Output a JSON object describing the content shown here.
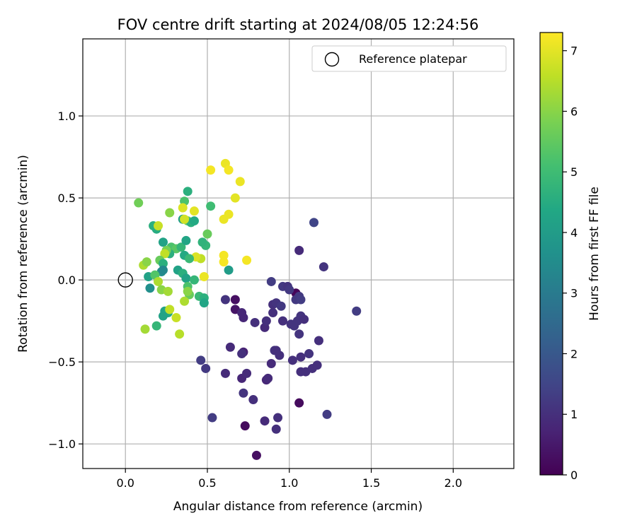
{
  "chart_data": {
    "type": "scatter",
    "title": "FOV centre drift starting at 2024/08/05 12:24:56",
    "xlabel": "Angular distance from reference (arcmin)",
    "ylabel": "Rotation from reference (arcmin)",
    "xlim": [
      -0.26,
      2.37
    ],
    "ylim": [
      -1.15,
      1.47
    ],
    "xticks": [
      0.0,
      0.5,
      1.0,
      1.5,
      2.0
    ],
    "xtick_labels": [
      "0.0",
      "0.5",
      "1.0",
      "1.5",
      "2.0"
    ],
    "yticks": [
      -1.0,
      -0.5,
      0.0,
      0.5,
      1.0
    ],
    "ytick_labels": [
      "−1.0",
      "−0.5",
      "0.0",
      "0.5",
      "1.0"
    ],
    "grid": true,
    "legend": {
      "label": "Reference platepar",
      "position": "top-right"
    },
    "reference_point": {
      "x": 0.0,
      "y": 0.0
    },
    "colorbar": {
      "label": "Hours from first FF file",
      "range": [
        0,
        7.3
      ],
      "ticks": [
        0,
        1,
        2,
        3,
        4,
        5,
        6,
        7
      ],
      "colormap": "viridis"
    },
    "points": [
      [
        0.8,
        -1.07,
        0.3
      ],
      [
        0.73,
        -0.89,
        0.2
      ],
      [
        1.06,
        -0.75,
        0.2
      ],
      [
        1.04,
        -0.08,
        0.1
      ],
      [
        0.67,
        -0.12,
        0.3
      ],
      [
        0.67,
        -0.18,
        0.4
      ],
      [
        0.71,
        -0.6,
        0.8
      ],
      [
        0.72,
        -0.44,
        0.7
      ],
      [
        0.85,
        -0.86,
        0.9
      ],
      [
        0.92,
        -0.91,
        1.0
      ],
      [
        0.93,
        -0.84,
        1.0
      ],
      [
        0.53,
        -0.84,
        1.3
      ],
      [
        0.72,
        -0.69,
        1.1
      ],
      [
        0.78,
        -0.73,
        1.0
      ],
      [
        0.74,
        -0.57,
        0.9
      ],
      [
        0.61,
        -0.57,
        0.9
      ],
      [
        0.49,
        -0.54,
        1.2
      ],
      [
        0.46,
        -0.49,
        1.3
      ],
      [
        0.64,
        -0.41,
        0.9
      ],
      [
        0.71,
        -0.45,
        1.0
      ],
      [
        0.72,
        -0.23,
        0.8
      ],
      [
        0.71,
        -0.2,
        0.8
      ],
      [
        0.61,
        -0.12,
        1.1
      ],
      [
        0.79,
        -0.26,
        1.0
      ],
      [
        0.85,
        -0.29,
        0.9
      ],
      [
        0.86,
        -0.25,
        1.0
      ],
      [
        0.9,
        -0.2,
        1.0
      ],
      [
        0.9,
        -0.15,
        1.0
      ],
      [
        0.91,
        -0.43,
        1.1
      ],
      [
        0.92,
        -0.43,
        1.0
      ],
      [
        0.89,
        -0.51,
        0.9
      ],
      [
        0.86,
        -0.61,
        0.8
      ],
      [
        0.87,
        -0.6,
        0.9
      ],
      [
        0.89,
        -0.01,
        1.3
      ],
      [
        0.92,
        -0.14,
        1.1
      ],
      [
        0.94,
        -0.46,
        1.0
      ],
      [
        0.96,
        -0.04,
        1.2
      ],
      [
        0.99,
        -0.04,
        1.1
      ],
      [
        1.0,
        -0.06,
        1.2
      ],
      [
        0.95,
        -0.16,
        1.2
      ],
      [
        0.96,
        -0.25,
        1.0
      ],
      [
        1.01,
        -0.27,
        1.1
      ],
      [
        1.02,
        -0.49,
        1.0
      ],
      [
        1.03,
        -0.28,
        1.1
      ],
      [
        1.05,
        -0.25,
        1.1
      ],
      [
        1.04,
        -0.12,
        1.2
      ],
      [
        1.06,
        -0.1,
        1.2
      ],
      [
        1.07,
        -0.12,
        1.3
      ],
      [
        1.07,
        -0.22,
        1.1
      ],
      [
        1.09,
        -0.24,
        1.0
      ],
      [
        1.06,
        -0.33,
        1.1
      ],
      [
        1.07,
        -0.47,
        1.0
      ],
      [
        1.07,
        -0.56,
        1.0
      ],
      [
        1.1,
        -0.56,
        1.0
      ],
      [
        1.12,
        -0.45,
        1.1
      ],
      [
        1.14,
        -0.54,
        1.0
      ],
      [
        1.17,
        -0.52,
        1.0
      ],
      [
        1.18,
        -0.37,
        1.0
      ],
      [
        1.06,
        0.18,
        0.9
      ],
      [
        1.21,
        0.08,
        1.1
      ],
      [
        1.15,
        0.35,
        1.5
      ],
      [
        1.23,
        -0.82,
        1.3
      ],
      [
        1.41,
        -0.19,
        1.3
      ],
      [
        0.08,
        0.47,
        5.7
      ],
      [
        0.17,
        0.33,
        4.6
      ],
      [
        0.19,
        0.31,
        4.5
      ],
      [
        0.2,
        0.33,
        6.7
      ],
      [
        0.27,
        0.41,
        6.0
      ],
      [
        0.36,
        0.48,
        5.2
      ],
      [
        0.38,
        0.54,
        4.6
      ],
      [
        0.52,
        0.45,
        5.0
      ],
      [
        0.38,
        0.36,
        5.5
      ],
      [
        0.35,
        0.37,
        4.1
      ],
      [
        0.4,
        0.35,
        4.6
      ],
      [
        0.42,
        0.36,
        4.4
      ],
      [
        0.23,
        0.23,
        4.2
      ],
      [
        0.28,
        0.2,
        5.2
      ],
      [
        0.31,
        0.19,
        5.4
      ],
      [
        0.27,
        0.16,
        4.6
      ],
      [
        0.25,
        0.18,
        5.8
      ],
      [
        0.24,
        0.16,
        6.6
      ],
      [
        0.34,
        0.2,
        4.8
      ],
      [
        0.36,
        0.15,
        4.4
      ],
      [
        0.37,
        0.24,
        4.3
      ],
      [
        0.21,
        0.12,
        5.6
      ],
      [
        0.23,
        0.1,
        4.6
      ],
      [
        0.22,
        0.05,
        3.6
      ],
      [
        0.14,
        0.02,
        4.2
      ],
      [
        0.11,
        0.09,
        6.4
      ],
      [
        0.13,
        0.11,
        6.0
      ],
      [
        0.18,
        0.03,
        5.3
      ],
      [
        0.23,
        0.06,
        3.4
      ],
      [
        0.32,
        0.06,
        4.2
      ],
      [
        0.35,
        0.04,
        4.6
      ],
      [
        0.37,
        0.01,
        4.2
      ],
      [
        0.42,
        0.0,
        4.8
      ],
      [
        0.2,
        -0.01,
        6.4
      ],
      [
        0.22,
        -0.06,
        6.0
      ],
      [
        0.15,
        -0.05,
        3.6
      ],
      [
        0.26,
        -0.07,
        6.3
      ],
      [
        0.38,
        -0.04,
        5.2
      ],
      [
        0.39,
        -0.09,
        5.6
      ],
      [
        0.36,
        -0.13,
        6.4
      ],
      [
        0.45,
        -0.1,
        4.9
      ],
      [
        0.48,
        -0.11,
        4.6
      ],
      [
        0.48,
        -0.14,
        4.3
      ],
      [
        0.24,
        -0.19,
        4.2
      ],
      [
        0.26,
        -0.2,
        4.4
      ],
      [
        0.23,
        -0.22,
        4.2
      ],
      [
        0.27,
        -0.18,
        6.6
      ],
      [
        0.31,
        -0.23,
        6.7
      ],
      [
        0.19,
        -0.28,
        4.8
      ],
      [
        0.12,
        -0.3,
        6.3
      ],
      [
        0.33,
        -0.33,
        6.5
      ],
      [
        0.38,
        -0.07,
        6.0
      ],
      [
        0.49,
        0.21,
        4.8
      ],
      [
        0.47,
        0.23,
        4.7
      ],
      [
        0.5,
        0.28,
        5.6
      ],
      [
        0.46,
        0.13,
        6.6
      ],
      [
        0.43,
        0.14,
        6.9
      ],
      [
        0.39,
        0.13,
        4.9
      ],
      [
        0.63,
        0.06,
        4.0
      ],
      [
        0.48,
        0.02,
        7.1
      ],
      [
        0.36,
        0.37,
        6.8
      ],
      [
        0.42,
        0.42,
        7.0
      ],
      [
        0.35,
        0.44,
        6.9
      ],
      [
        0.6,
        0.37,
        7.1
      ],
      [
        0.63,
        0.4,
        7.1
      ],
      [
        0.52,
        0.67,
        7.2
      ],
      [
        0.61,
        0.71,
        7.1
      ],
      [
        0.63,
        0.67,
        7.2
      ],
      [
        0.7,
        0.6,
        7.1
      ],
      [
        0.67,
        0.5,
        7.0
      ],
      [
        0.6,
        0.15,
        7.2
      ],
      [
        0.6,
        0.11,
        7.2
      ],
      [
        0.74,
        0.12,
        7.2
      ]
    ]
  }
}
